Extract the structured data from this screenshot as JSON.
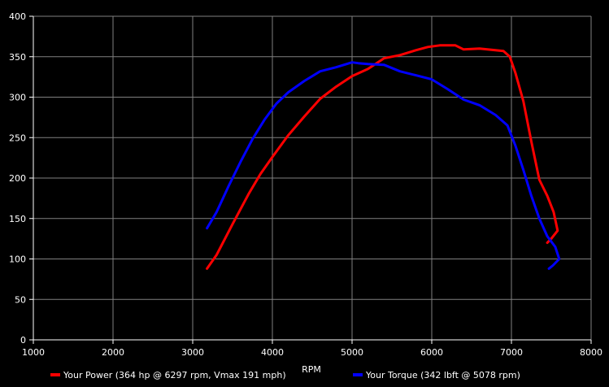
{
  "chart_data": {
    "type": "line",
    "title": "",
    "xlabel": "RPM",
    "ylabel": "",
    "xlim": [
      1000,
      8000
    ],
    "ylim": [
      0,
      400
    ],
    "x_ticks": [
      1000,
      2000,
      3000,
      4000,
      5000,
      6000,
      7000,
      8000
    ],
    "y_ticks": [
      0,
      50,
      100,
      150,
      200,
      250,
      300,
      350,
      400
    ],
    "grid": true,
    "legend_position": "bottom",
    "background": "#000000",
    "grid_color": "#808080",
    "series": [
      {
        "name": "Your Power (364 hp @ 6297 rpm, Vmax 191 mph)",
        "color": "#ff0000",
        "points": [
          [
            3180,
            88
          ],
          [
            3300,
            105
          ],
          [
            3500,
            143
          ],
          [
            3700,
            180
          ],
          [
            3850,
            205
          ],
          [
            4000,
            226
          ],
          [
            4200,
            253
          ],
          [
            4400,
            276
          ],
          [
            4600,
            298
          ],
          [
            4800,
            313
          ],
          [
            5000,
            326
          ],
          [
            5200,
            335
          ],
          [
            5400,
            348
          ],
          [
            5600,
            352
          ],
          [
            5800,
            358
          ],
          [
            5950,
            362
          ],
          [
            6100,
            364
          ],
          [
            6297,
            364
          ],
          [
            6400,
            359
          ],
          [
            6600,
            360
          ],
          [
            6800,
            358
          ],
          [
            6900,
            357
          ],
          [
            6980,
            350
          ],
          [
            7050,
            330
          ],
          [
            7150,
            295
          ],
          [
            7250,
            245
          ],
          [
            7350,
            198
          ],
          [
            7450,
            178
          ],
          [
            7530,
            158
          ],
          [
            7580,
            135
          ],
          [
            7500,
            125
          ],
          [
            7450,
            120
          ]
        ]
      },
      {
        "name": "Your Torque (342 lbft @ 5078 rpm)",
        "color": "#0000ff",
        "points": [
          [
            3180,
            138
          ],
          [
            3300,
            158
          ],
          [
            3450,
            190
          ],
          [
            3600,
            220
          ],
          [
            3750,
            248
          ],
          [
            3900,
            272
          ],
          [
            4050,
            292
          ],
          [
            4200,
            306
          ],
          [
            4400,
            320
          ],
          [
            4600,
            332
          ],
          [
            4800,
            337
          ],
          [
            5000,
            343
          ],
          [
            5078,
            342
          ],
          [
            5200,
            341
          ],
          [
            5400,
            340
          ],
          [
            5600,
            332
          ],
          [
            5800,
            327
          ],
          [
            6000,
            322
          ],
          [
            6200,
            310
          ],
          [
            6400,
            297
          ],
          [
            6600,
            290
          ],
          [
            6800,
            278
          ],
          [
            6950,
            265
          ],
          [
            7050,
            240
          ],
          [
            7150,
            210
          ],
          [
            7250,
            178
          ],
          [
            7350,
            150
          ],
          [
            7450,
            128
          ],
          [
            7550,
            115
          ],
          [
            7600,
            100
          ],
          [
            7520,
            92
          ],
          [
            7470,
            88
          ]
        ]
      }
    ]
  }
}
